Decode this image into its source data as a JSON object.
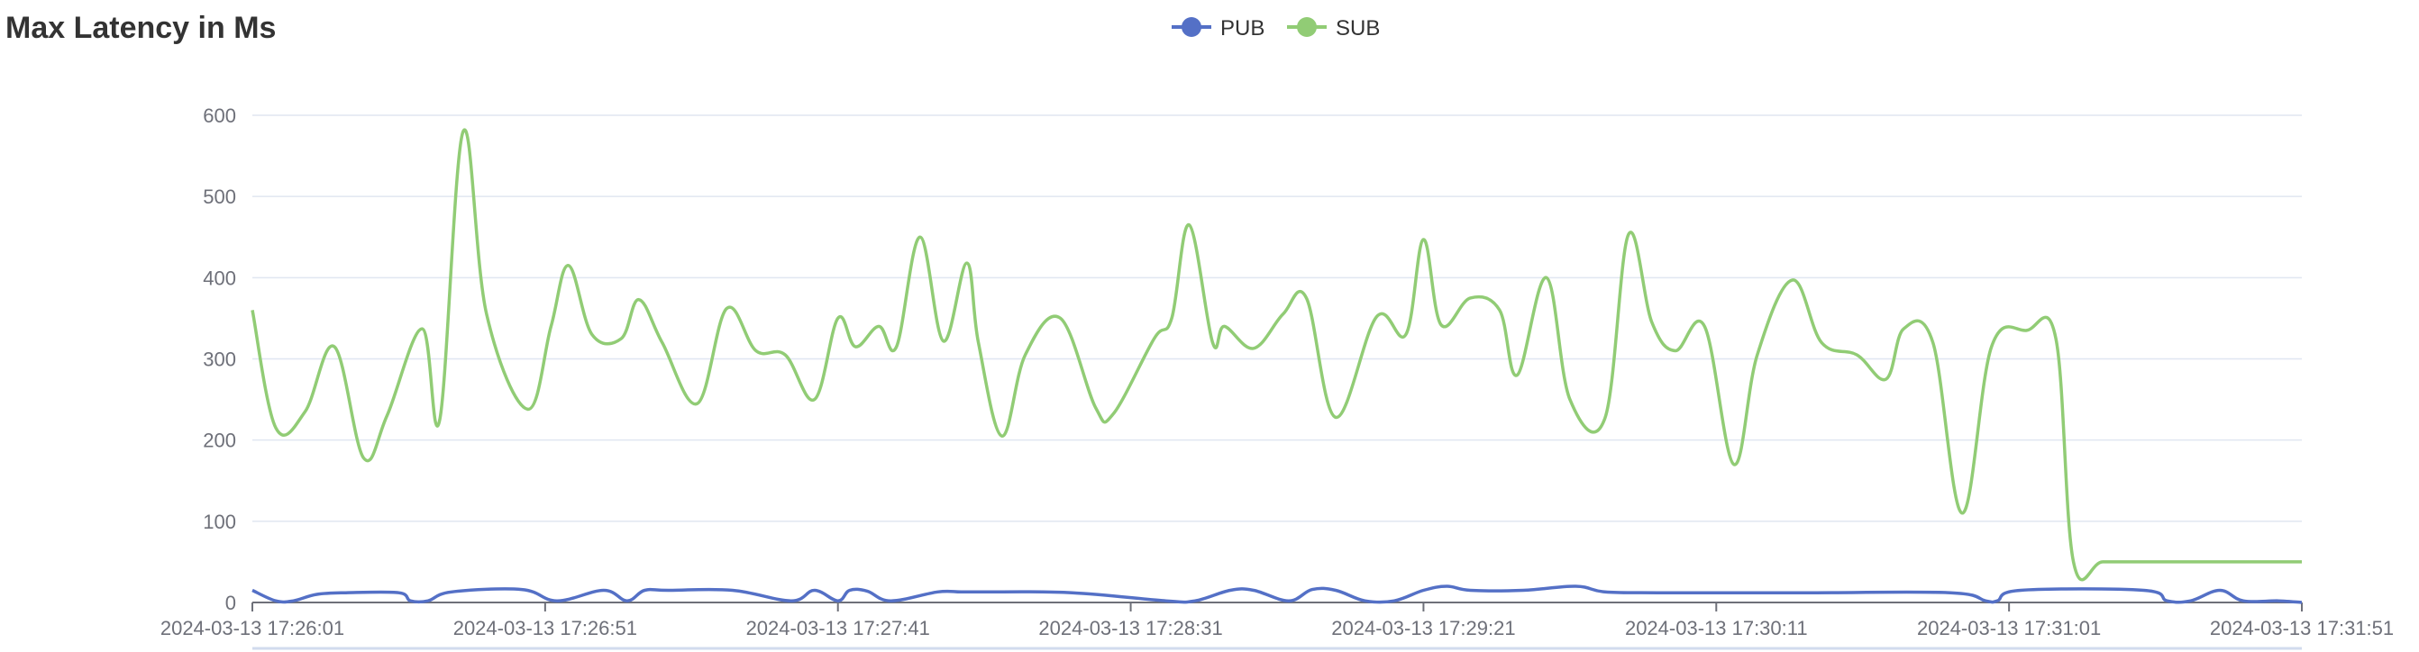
{
  "chart_data": {
    "type": "line",
    "title": "Max Latency in Ms",
    "xlabel": "",
    "ylabel": "",
    "ylim": [
      0,
      600
    ],
    "yticks": [
      0,
      100,
      200,
      300,
      400,
      500,
      600
    ],
    "x_tick_labels": [
      "2024-03-13 17:26:01",
      "2024-03-13 17:26:51",
      "2024-03-13 17:27:41",
      "2024-03-13 17:28:31",
      "2024-03-13 17:29:21",
      "2024-03-13 17:30:11",
      "2024-03-13 17:31:01",
      "2024-03-13 17:31:51"
    ],
    "x_range": [
      "2024-03-13 17:26:01",
      "2024-03-13 17:31:51"
    ],
    "grid": "horizontal",
    "legend": "top-center",
    "series": [
      {
        "name": "PUB",
        "color": "#5470c6",
        "x": [
          "2024-03-13 17:26:01",
          "2024-03-13 17:26:05",
          "2024-03-13 17:26:08",
          "2024-03-13 17:26:12",
          "2024-03-13 17:26:17",
          "2024-03-13 17:26:26",
          "2024-03-13 17:26:28",
          "2024-03-13 17:26:31",
          "2024-03-13 17:26:35",
          "2024-03-13 17:26:47",
          "2024-03-13 17:26:53",
          "2024-03-13 17:27:01",
          "2024-03-13 17:27:05",
          "2024-03-13 17:27:08",
          "2024-03-13 17:27:12",
          "2024-03-13 17:27:23",
          "2024-03-13 17:27:33",
          "2024-03-13 17:27:37",
          "2024-03-13 17:27:41",
          "2024-03-13 17:27:43",
          "2024-03-13 17:27:46",
          "2024-03-13 17:27:50",
          "2024-03-13 17:27:58",
          "2024-03-13 17:28:02",
          "2024-03-13 17:28:06",
          "2024-03-13 17:28:21",
          "2024-03-13 17:28:37",
          "2024-03-13 17:28:42",
          "2024-03-13 17:28:48",
          "2024-03-13 17:28:52",
          "2024-03-13 17:28:58",
          "2024-03-13 17:29:02",
          "2024-03-13 17:29:06",
          "2024-03-13 17:29:11",
          "2024-03-13 17:29:16",
          "2024-03-13 17:29:21",
          "2024-03-13 17:29:25",
          "2024-03-13 17:29:29",
          "2024-03-13 17:29:38",
          "2024-03-13 17:29:47",
          "2024-03-13 17:29:52",
          "2024-03-13 17:30:01",
          "2024-03-13 17:30:26",
          "2024-03-13 17:30:51",
          "2024-03-13 17:30:57",
          "2024-03-13 17:30:59",
          "2024-03-13 17:31:03",
          "2024-03-13 17:31:24",
          "2024-03-13 17:31:28",
          "2024-03-13 17:31:32",
          "2024-03-13 17:31:37",
          "2024-03-13 17:31:41",
          "2024-03-13 17:31:47",
          "2024-03-13 17:31:51"
        ],
        "values": [
          15,
          2,
          2,
          10,
          12,
          12,
          2,
          2,
          13,
          16,
          2,
          15,
          2,
          15,
          15,
          15,
          2,
          15,
          2,
          15,
          14,
          2,
          13,
          13,
          13,
          12,
          2,
          2,
          15,
          15,
          2,
          16,
          15,
          2,
          2,
          15,
          20,
          15,
          15,
          20,
          13,
          12,
          12,
          12,
          2,
          2,
          15,
          15,
          2,
          2,
          15,
          2,
          2,
          0
        ]
      },
      {
        "name": "SUB",
        "color": "#91cc75",
        "x": [
          "2024-03-13 17:26:01",
          "2024-03-13 17:26:05",
          "2024-03-13 17:26:10",
          "2024-03-13 17:26:15",
          "2024-03-13 17:26:20",
          "2024-03-13 17:26:24",
          "2024-03-13 17:26:30",
          "2024-03-13 17:26:33",
          "2024-03-13 17:26:37",
          "2024-03-13 17:26:41",
          "2024-03-13 17:26:48",
          "2024-03-13 17:26:52",
          "2024-03-13 17:26:55",
          "2024-03-13 17:26:59",
          "2024-03-13 17:27:04",
          "2024-03-13 17:27:07",
          "2024-03-13 17:27:11",
          "2024-03-13 17:27:17",
          "2024-03-13 17:27:22",
          "2024-03-13 17:27:27",
          "2024-03-13 17:27:32",
          "2024-03-13 17:27:37",
          "2024-03-13 17:27:41",
          "2024-03-13 17:27:44",
          "2024-03-13 17:27:48",
          "2024-03-13 17:27:51",
          "2024-03-13 17:27:55",
          "2024-03-13 17:27:59",
          "2024-03-13 17:28:03",
          "2024-03-13 17:28:05",
          "2024-03-13 17:28:09",
          "2024-03-13 17:28:13",
          "2024-03-13 17:28:19",
          "2024-03-13 17:28:25",
          "2024-03-13 17:28:28",
          "2024-03-13 17:28:35",
          "2024-03-13 17:28:38",
          "2024-03-13 17:28:41",
          "2024-03-13 17:28:45",
          "2024-03-13 17:28:47",
          "2024-03-13 17:28:52",
          "2024-03-13 17:28:57",
          "2024-03-13 17:29:01",
          "2024-03-13 17:29:06",
          "2024-03-13 17:29:13",
          "2024-03-13 17:29:18",
          "2024-03-13 17:29:21",
          "2024-03-13 17:29:24",
          "2024-03-13 17:29:29",
          "2024-03-13 17:29:34",
          "2024-03-13 17:29:37",
          "2024-03-13 17:29:42",
          "2024-03-13 17:29:46",
          "2024-03-13 17:29:52",
          "2024-03-13 17:29:56",
          "2024-03-13 17:30:00",
          "2024-03-13 17:30:04",
          "2024-03-13 17:30:09",
          "2024-03-13 17:30:14",
          "2024-03-13 17:30:18",
          "2024-03-13 17:30:24",
          "2024-03-13 17:30:29",
          "2024-03-13 17:30:35",
          "2024-03-13 17:30:40",
          "2024-03-13 17:30:43",
          "2024-03-13 17:30:48",
          "2024-03-13 17:30:53",
          "2024-03-13 17:30:58",
          "2024-03-13 17:31:04",
          "2024-03-13 17:31:09",
          "2024-03-13 17:31:12",
          "2024-03-13 17:31:17",
          "2024-03-13 17:31:24",
          "2024-03-13 17:31:31",
          "2024-03-13 17:31:34",
          "2024-03-13 17:31:41",
          "2024-03-13 17:31:51"
        ],
        "values": [
          360,
          215,
          235,
          315,
          178,
          230,
          337,
          225,
          580,
          355,
          238,
          340,
          415,
          330,
          325,
          373,
          320,
          245,
          362,
          310,
          305,
          250,
          350,
          315,
          340,
          315,
          450,
          322,
          418,
          320,
          205,
          305,
          350,
          240,
          232,
          325,
          350,
          465,
          320,
          340,
          313,
          355,
          375,
          228,
          352,
          330,
          447,
          342,
          375,
          360,
          280,
          400,
          250,
          227,
          453,
          345,
          310,
          340,
          170,
          305,
          397,
          320,
          305,
          275,
          337,
          320,
          110,
          315,
          335,
          325,
          50,
          50,
          50,
          50,
          50,
          50,
          50
        ]
      }
    ]
  }
}
